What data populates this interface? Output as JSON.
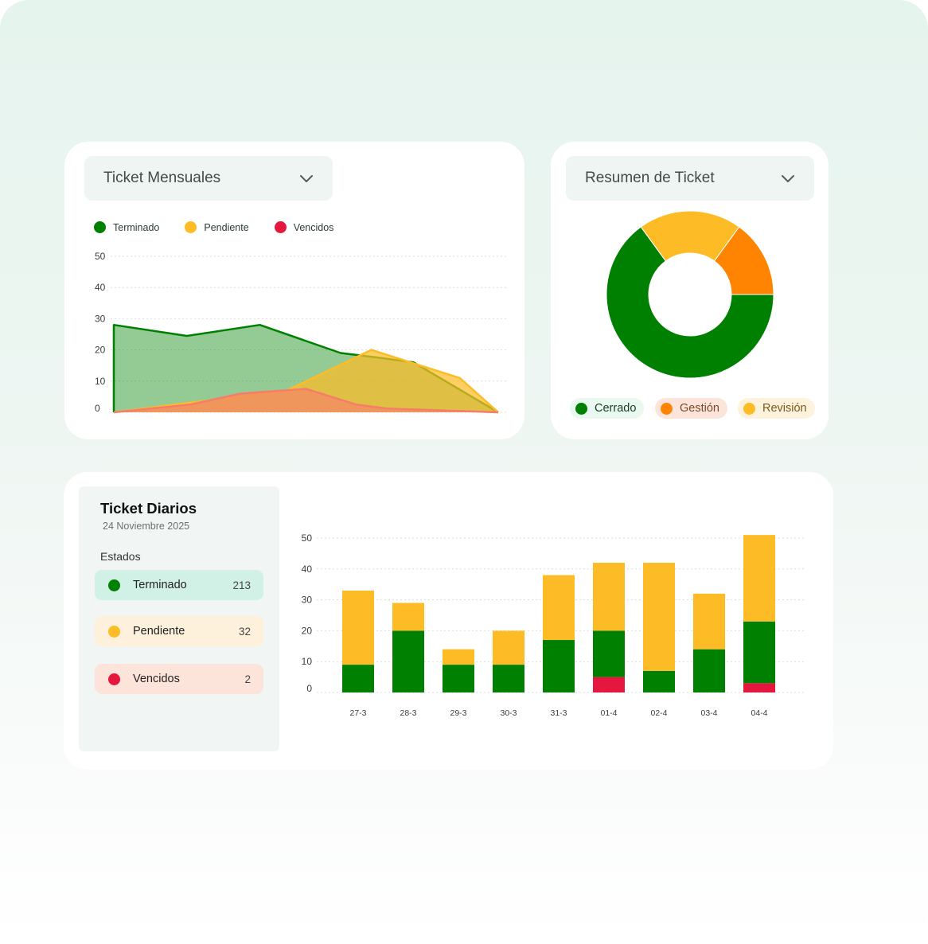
{
  "colors": {
    "green": "#008000",
    "yellow": "#fdbc25",
    "red": "#e5173f",
    "orange": "#ff8402",
    "salmon": "#f77c6a"
  },
  "monthly": {
    "dropdown_label": "Ticket Mensuales",
    "dropdown_icon": "chevron-down-icon",
    "legend": [
      {
        "label": "Terminado",
        "color": "#008000"
      },
      {
        "label": "Pendiente",
        "color": "#fdbc25"
      },
      {
        "label": "Vencidos",
        "color": "#e5173f"
      }
    ]
  },
  "summary": {
    "dropdown_label": "Resumen de Ticket",
    "dropdown_icon": "chevron-down-icon",
    "pills": [
      {
        "label": "Cerrado",
        "dot": "#008000",
        "bg": "#e9f9ef",
        "text": "#1f3a28"
      },
      {
        "label": "Gestión",
        "dot": "#ff8402",
        "bg": "#fde4da",
        "text": "#7a4a2c"
      },
      {
        "label": "Revisión",
        "dot": "#fdbc25",
        "bg": "#fdf3dc",
        "text": "#7a5a1e"
      }
    ]
  },
  "daily": {
    "title": "Ticket Diarios",
    "date": "24 Noviembre 2025",
    "estados_label": "Estados",
    "statuses": [
      {
        "label": "Terminado",
        "count": "213",
        "dot": "#008000",
        "bg": "#d2f1e6"
      },
      {
        "label": "Pendiente",
        "count": "32",
        "dot": "#fdbc25",
        "bg": "#fdf1dc"
      },
      {
        "label": "Vencidos",
        "count": "2",
        "dot": "#e5173f",
        "bg": "#fde4da"
      }
    ]
  },
  "chart_data": [
    {
      "type": "area",
      "yticks": [
        0,
        10,
        20,
        30,
        40,
        50
      ],
      "ylim": [
        0,
        50
      ],
      "grid": true,
      "legend_position": "top-left",
      "series": [
        {
          "name": "Terminado",
          "color": "#008000",
          "points": [
            [
              0,
              28
            ],
            [
              0.19,
              24.5
            ],
            [
              0.38,
              28
            ],
            [
              0.59,
              19
            ],
            [
              0.69,
              17.5
            ],
            [
              0.78,
              16
            ],
            [
              1,
              0
            ]
          ]
        },
        {
          "name": "Pendiente",
          "color": "#fdbc25",
          "points": [
            [
              0,
              0
            ],
            [
              0.45,
              7
            ],
            [
              0.67,
              20
            ],
            [
              0.9,
              11
            ],
            [
              1,
              0
            ]
          ]
        },
        {
          "name": "Vencidos",
          "color": "#f77c6a",
          "points": [
            [
              0,
              0
            ],
            [
              0.2,
              2.5
            ],
            [
              0.33,
              6
            ],
            [
              0.5,
              7.5
            ],
            [
              0.63,
              2.5
            ],
            [
              0.71,
              1.2
            ],
            [
              1,
              0
            ]
          ]
        }
      ]
    },
    {
      "type": "pie",
      "donut": true,
      "slices": [
        {
          "label": "Cerrado",
          "value": 65,
          "color": "#008000"
        },
        {
          "label": "Revisión",
          "value": 20,
          "color": "#fdbc25"
        },
        {
          "label": "Gestión",
          "value": 15,
          "color": "#ff8402"
        }
      ]
    },
    {
      "type": "bar",
      "stacked": true,
      "categories": [
        "27-3",
        "28-3",
        "29-3",
        "30-3",
        "31-3",
        "01-4",
        "02-4",
        "03-4",
        "04-4"
      ],
      "yticks": [
        0,
        10,
        20,
        30,
        40,
        50
      ],
      "ylim": [
        0,
        50
      ],
      "grid": true,
      "series": [
        {
          "name": "Vencidos",
          "color": "#e5173f",
          "values": [
            0,
            0,
            0,
            0,
            0,
            5,
            0,
            0,
            3
          ]
        },
        {
          "name": "Terminado",
          "color": "#008000",
          "values": [
            9,
            20,
            9,
            9,
            17,
            15,
            7,
            14,
            20
          ]
        },
        {
          "name": "Pendiente",
          "color": "#fdbc25",
          "values": [
            24,
            9,
            5,
            11,
            21,
            22,
            35,
            18,
            28
          ]
        }
      ]
    }
  ]
}
